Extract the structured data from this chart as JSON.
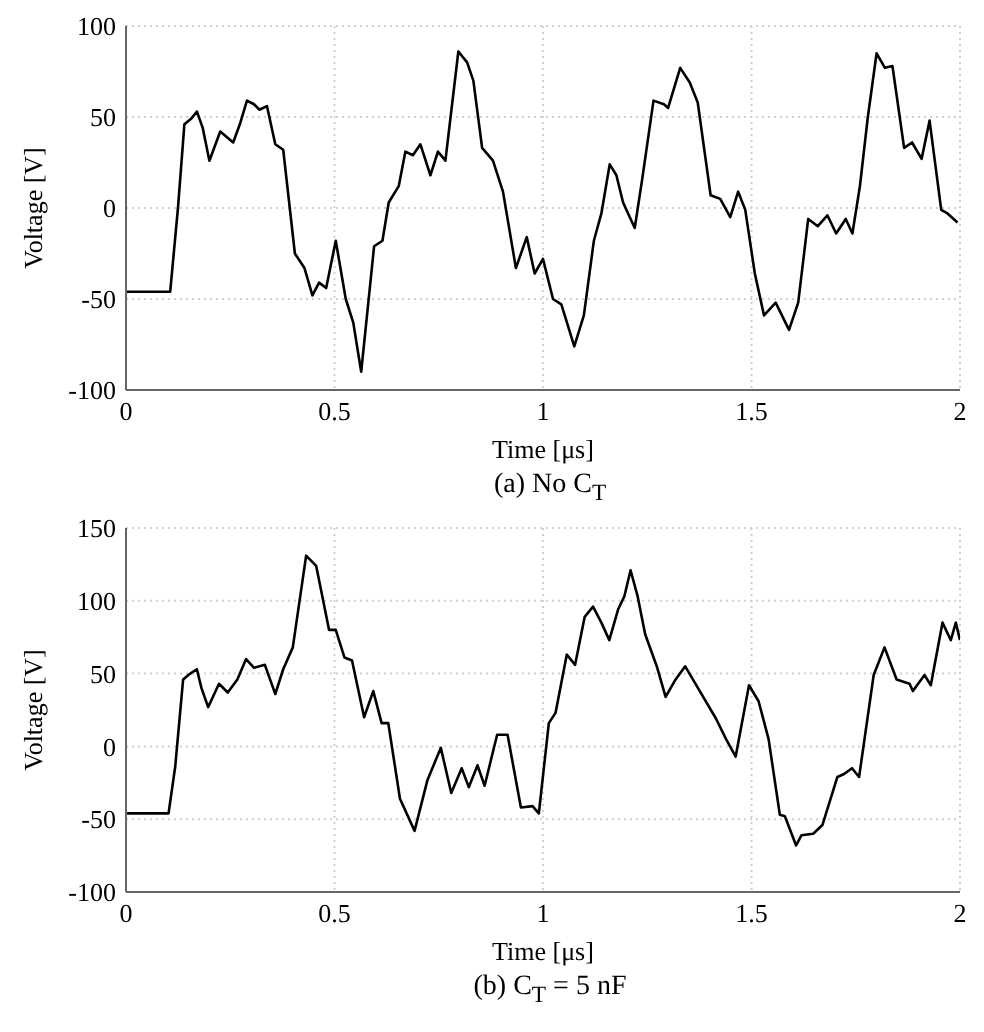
{
  "chart_data": [
    {
      "type": "line",
      "xlabel": "Time [μs]",
      "ylabel": "Voltage [V]",
      "annotations": [
        "(a) No C$_{T}$"
      ],
      "x": [
        0,
        0.106,
        0.125,
        0.14,
        0.156,
        0.17,
        0.184,
        0.2,
        0.226,
        0.257,
        0.273,
        0.29,
        0.307,
        0.32,
        0.338,
        0.358,
        0.377,
        0.405,
        0.428,
        0.447,
        0.463,
        0.48,
        0.503,
        0.527,
        0.545,
        0.564,
        0.595,
        0.615,
        0.63,
        0.654,
        0.67,
        0.688,
        0.706,
        0.73,
        0.748,
        0.766,
        0.797,
        0.818,
        0.833,
        0.854,
        0.88,
        0.904,
        0.935,
        0.961,
        0.98,
        1.0,
        1.024,
        1.044,
        1.075,
        1.098,
        1.122,
        1.14,
        1.16,
        1.176,
        1.192,
        1.22,
        1.238,
        1.265,
        1.29,
        1.3,
        1.329,
        1.352,
        1.371,
        1.402,
        1.425,
        1.449,
        1.468,
        1.485,
        1.508,
        1.53,
        1.558,
        1.59,
        1.612,
        1.636,
        1.659,
        1.682,
        1.703,
        1.726,
        1.742,
        1.76,
        1.779,
        1.8,
        1.82,
        1.838,
        1.866,
        1.885,
        1.908,
        1.927,
        1.955,
        1.97,
        1.994
      ],
      "series": [
        {
          "color": "#000000",
          "values": [
            -46,
            -46,
            1,
            46,
            49,
            53,
            44,
            26,
            42,
            36,
            46,
            59,
            57,
            54,
            56,
            35,
            32,
            -25,
            -33,
            -48,
            -41,
            -44,
            -18,
            -50,
            -63,
            -90,
            -21,
            -18,
            3,
            12,
            31,
            29,
            35,
            18,
            31,
            26,
            86,
            80,
            70,
            33,
            26,
            9,
            -33,
            -16,
            -36,
            -28,
            -50,
            -53,
            -76,
            -59,
            -18,
            -3,
            24,
            18,
            3,
            -11,
            16,
            59,
            57,
            55,
            77,
            69,
            58,
            7,
            5,
            -5,
            9,
            -1,
            -36,
            -59,
            -52,
            -67,
            -52,
            -6,
            -10,
            -4,
            -14,
            -6,
            -14,
            12,
            50,
            85,
            77,
            78,
            33,
            36,
            27,
            48,
            -1,
            -3,
            -8
          ]
        }
      ],
      "xlim": [
        0,
        2
      ],
      "xticks": [
        0,
        0.5,
        1,
        1.5,
        2
      ],
      "ylim": [
        -100,
        100
      ],
      "yticks": [
        -100,
        -50,
        0,
        50,
        100
      ],
      "grid": true
    },
    {
      "type": "line",
      "xlabel": "Time [μs]",
      "ylabel": "Voltage [V]",
      "annotations": [
        "(b) C$_{T}$ = 5 nF"
      ],
      "x": [
        0,
        0.102,
        0.118,
        0.137,
        0.154,
        0.17,
        0.181,
        0.197,
        0.223,
        0.244,
        0.267,
        0.288,
        0.307,
        0.333,
        0.358,
        0.377,
        0.4,
        0.432,
        0.456,
        0.487,
        0.503,
        0.524,
        0.542,
        0.571,
        0.593,
        0.613,
        0.629,
        0.657,
        0.692,
        0.723,
        0.755,
        0.78,
        0.805,
        0.822,
        0.843,
        0.86,
        0.89,
        0.915,
        0.947,
        0.975,
        0.99,
        1.014,
        1.03,
        1.057,
        1.077,
        1.1,
        1.12,
        1.14,
        1.159,
        1.18,
        1.195,
        1.21,
        1.227,
        1.245,
        1.274,
        1.294,
        1.318,
        1.341,
        1.376,
        1.415,
        1.439,
        1.462,
        1.494,
        1.517,
        1.541,
        1.568,
        1.58,
        1.607,
        1.62,
        1.648,
        1.67,
        1.706,
        1.722,
        1.741,
        1.758,
        1.793,
        1.819,
        1.848,
        1.879,
        1.887,
        1.915,
        1.93,
        1.958,
        1.978,
        1.99,
        2.0
      ],
      "series": [
        {
          "color": "#000000",
          "values": [
            -46,
            -46,
            -14,
            46,
            50,
            53,
            40,
            27,
            43,
            37,
            46,
            60,
            54,
            56,
            36,
            53,
            68,
            131,
            124,
            80,
            80,
            61,
            59,
            20,
            38,
            16,
            16,
            -36,
            -58,
            -23,
            -1,
            -32,
            -15,
            -28,
            -13,
            -27,
            8,
            8,
            -42,
            -41,
            -46,
            16,
            23,
            63,
            56,
            89,
            96,
            85,
            73,
            94,
            103,
            121,
            103,
            77,
            54,
            34,
            46,
            55,
            38,
            19,
            5,
            -7,
            42,
            31,
            5,
            -47,
            -48,
            -68,
            -61,
            -60,
            -54,
            -21,
            -19,
            -15,
            -21,
            49,
            68,
            46,
            43,
            38,
            49,
            42,
            85,
            73,
            85,
            73
          ]
        }
      ],
      "xlim": [
        0,
        2
      ],
      "xticks": [
        0,
        0.5,
        1,
        1.5,
        2
      ],
      "ylim": [
        -100,
        150
      ],
      "yticks": [
        -100,
        -50,
        0,
        50,
        100,
        150
      ],
      "grid": true
    }
  ]
}
